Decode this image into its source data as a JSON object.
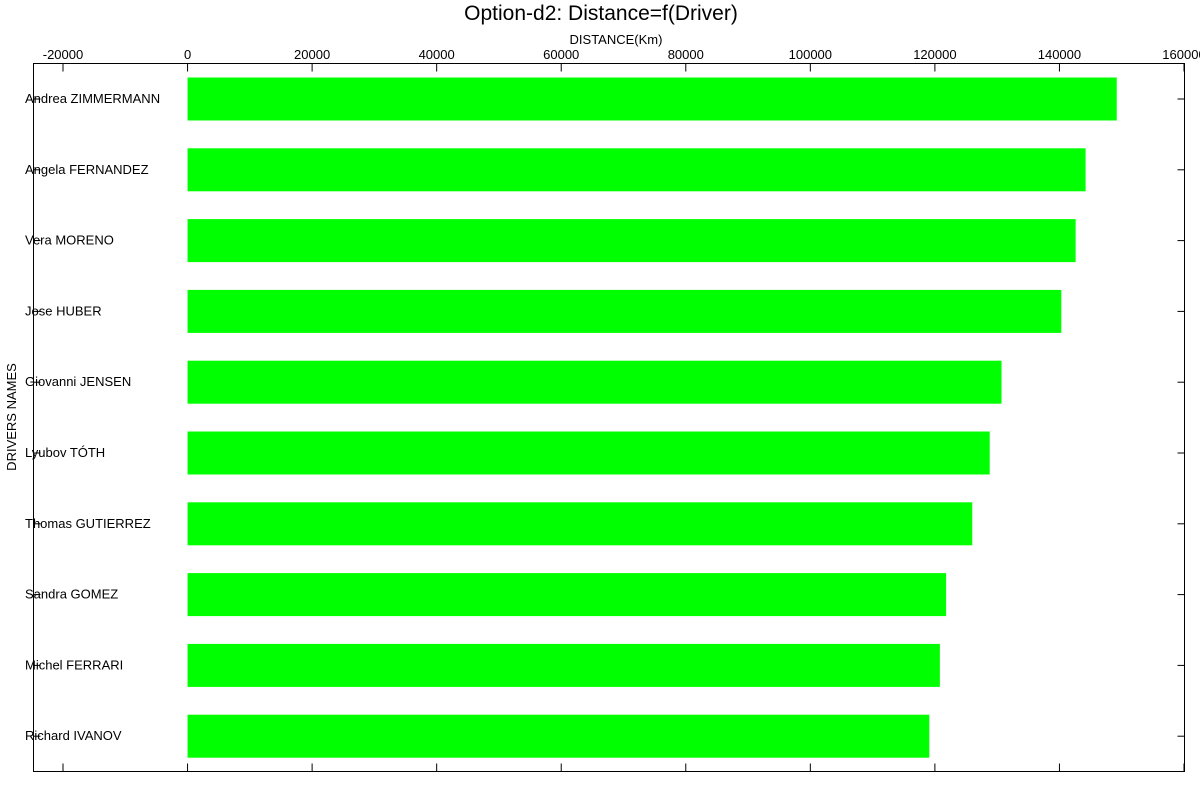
{
  "chart_data": {
    "type": "bar",
    "orientation": "horizontal",
    "title": "Option-d2: Distance=f(Driver)",
    "xlabel": "DISTANCE(Km)",
    "ylabel": "DRIVERS NAMES",
    "x_axis_position": "top",
    "xlim": [
      -20000,
      160000
    ],
    "xticks": [
      "-20000",
      "0",
      "20000",
      "40000",
      "60000",
      "80000",
      "100000",
      "120000",
      "140000",
      "160000"
    ],
    "categories": [
      "Andrea ZIMMERMANN",
      "Angela FERNANDEZ",
      "Vera MORENO",
      "Jose HUBER",
      "Giovanni JENSEN",
      "Lyubov TÓTH",
      "Thomas GUTIERREZ",
      "Sandra GOMEZ",
      "Michel FERRARI",
      "Richard IVANOV"
    ],
    "values": [
      149200,
      144200,
      142600,
      140300,
      130700,
      128800,
      126000,
      121800,
      120800,
      119100
    ],
    "bar_color": "#00ff00",
    "grid": false,
    "legend": "none"
  }
}
